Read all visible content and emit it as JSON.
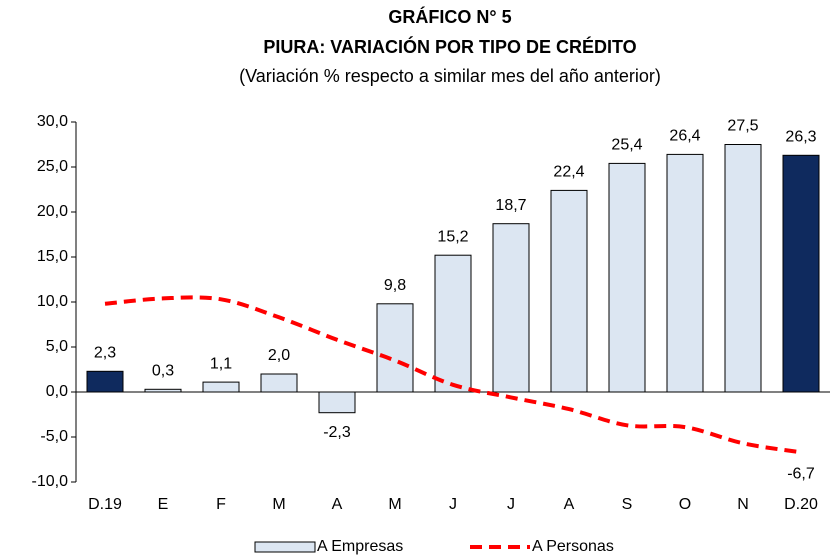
{
  "chart_data": {
    "type": "bar-line",
    "title": "GRÁFICO N° 5",
    "subtitle": "PIURA: VARIACIÓN POR TIPO DE CRÉDITO",
    "note": "(Variación % respecto a similar mes del año anterior)",
    "categories": [
      "D.19",
      "E",
      "F",
      "M",
      "A",
      "M",
      "J",
      "J",
      "A",
      "S",
      "O",
      "N",
      "D.20"
    ],
    "series": [
      {
        "name": "A Empresas",
        "type": "bar",
        "color": "#dce6f2",
        "colors": [
          "#0f2a5e",
          "#dce6f2",
          "#dce6f2",
          "#dce6f2",
          "#dce6f2",
          "#dce6f2",
          "#dce6f2",
          "#dce6f2",
          "#dce6f2",
          "#dce6f2",
          "#dce6f2",
          "#dce6f2",
          "#0f2a5e"
        ],
        "values": [
          2.3,
          0.3,
          1.1,
          2.0,
          -2.3,
          9.8,
          15.2,
          18.7,
          22.4,
          25.4,
          26.4,
          27.5,
          26.3
        ],
        "value_labels": [
          "2,3",
          "0,3",
          "1,1",
          "2,0",
          "-2,3",
          "9,8",
          "15,2",
          "18,7",
          "22,4",
          "25,4",
          "26,4",
          "27,5",
          "26,3"
        ]
      },
      {
        "name": "A Personas",
        "type": "line",
        "color": "#ff0000",
        "dashed": true,
        "values": [
          9.8,
          10.4,
          10.3,
          8.3,
          5.8,
          3.5,
          0.8,
          -0.6,
          -1.9,
          -3.7,
          -3.9,
          -5.7,
          -6.7
        ],
        "value_labels": [
          null,
          null,
          null,
          null,
          null,
          null,
          null,
          null,
          null,
          null,
          null,
          null,
          "-6,7"
        ]
      }
    ],
    "ylim": [
      -10,
      30
    ],
    "yticks": [
      {
        "value": -10,
        "label": "-10,0"
      },
      {
        "value": -5,
        "label": "-5,0"
      },
      {
        "value": 0,
        "label": "0,0"
      },
      {
        "value": 5,
        "label": "5,0"
      },
      {
        "value": 10,
        "label": "10,0"
      },
      {
        "value": 15,
        "label": "15,0"
      },
      {
        "value": 20,
        "label": "20,0"
      },
      {
        "value": 25,
        "label": "25,0"
      },
      {
        "value": 30,
        "label": "30,0"
      }
    ],
    "legend": "bottom"
  }
}
